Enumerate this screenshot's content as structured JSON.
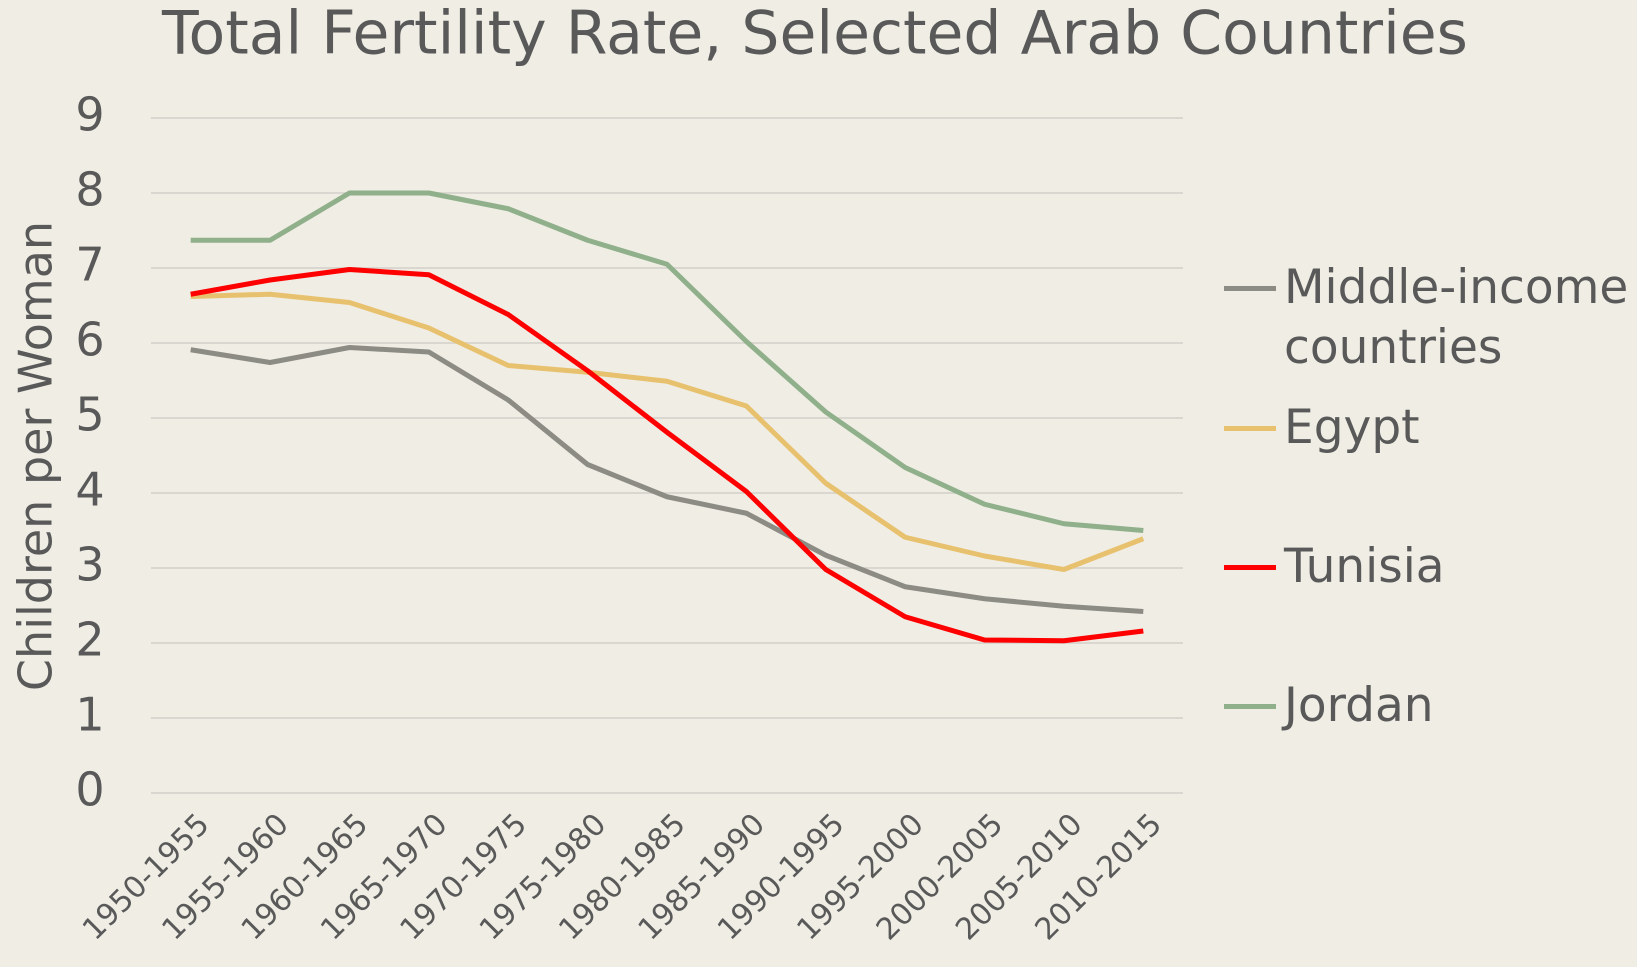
{
  "chart_data": {
    "type": "line",
    "title": "Total Fertility Rate, Selected Arab Countries",
    "y_label": "Children per Woman",
    "categories": [
      "1950-1955",
      "1955-1960",
      "1960-1965",
      "1965-1970",
      "1970-1975",
      "1975-1980",
      "1980-1985",
      "1985-1990",
      "1990-1995",
      "1995-2000",
      "2000-2005",
      "2005-2010",
      "2010-2015"
    ],
    "series": [
      {
        "name": "Middle-income countries",
        "color": "#8c8c84",
        "values": [
          5.91,
          5.74,
          5.94,
          5.88,
          5.24,
          4.38,
          3.95,
          3.73,
          3.17,
          2.75,
          2.59,
          2.49,
          2.42
        ]
      },
      {
        "name": "Egypt",
        "color": "#e8c16e",
        "values": [
          6.62,
          6.65,
          6.54,
          6.2,
          5.7,
          5.61,
          5.49,
          5.16,
          4.13,
          3.41,
          3.16,
          2.98,
          3.39
        ]
      },
      {
        "name": "Tunisia",
        "color": "#ff0000",
        "values": [
          6.65,
          6.84,
          6.98,
          6.91,
          6.38,
          5.63,
          4.81,
          4.02,
          2.98,
          2.35,
          2.04,
          2.03,
          2.16
        ]
      },
      {
        "name": "Jordan",
        "color": "#8fb08a",
        "values": [
          7.37,
          7.37,
          8.0,
          8.0,
          7.79,
          7.37,
          7.05,
          6.02,
          5.08,
          4.34,
          3.85,
          3.59,
          3.5
        ]
      }
    ],
    "ylim": [
      0,
      9
    ],
    "yticks": [
      0,
      1,
      2,
      3,
      4,
      5,
      6,
      7,
      8,
      9
    ],
    "grid": true,
    "legend": "right"
  }
}
